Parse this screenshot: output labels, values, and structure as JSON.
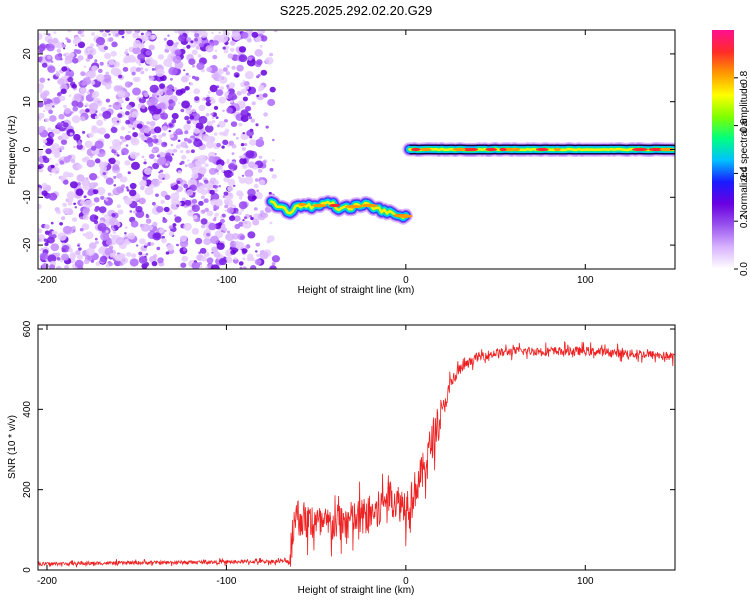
{
  "title": "S225.2025.292.02.20.G29",
  "chart_data": [
    {
      "type": "heatmap",
      "name": "spectrogram",
      "xlabel": "Height of straight line (km)",
      "ylabel": "Frequency (Hz)",
      "xlim": [
        -205,
        150
      ],
      "ylim": [
        -25,
        25
      ],
      "xticks": [
        -200,
        -100,
        0,
        100
      ],
      "yticks": [
        20,
        10,
        0,
        -10,
        -20
      ],
      "colorbar": {
        "label": "Normalized spectral amplitude",
        "range": [
          0,
          1
        ],
        "ticks": [
          0.0,
          0.2,
          0.4,
          0.6,
          0.8
        ],
        "colors": [
          "#ffffff",
          "#d9b3ff",
          "#9955ee",
          "#6a00e0",
          "#1a1aff",
          "#00c0ff",
          "#00ff80",
          "#7fff00",
          "#ffff00",
          "#ff9900",
          "#ff2a2a",
          "#ff1090"
        ]
      },
      "noise_region_x": [
        -205,
        -72
      ],
      "tone_segments": [
        {
          "x": [
            -75,
            -65,
            -58,
            -50,
            -43,
            -36,
            -30,
            -22,
            -15,
            -8,
            0
          ],
          "y": [
            -11,
            -13,
            -11.5,
            -12,
            -11,
            -12.5,
            -12,
            -11.5,
            -12.5,
            -13.5,
            -14
          ]
        },
        {
          "x": [
            2,
            150
          ],
          "y": [
            0,
            0
          ]
        }
      ],
      "grid": false
    },
    {
      "type": "line",
      "name": "snr",
      "xlabel": "Height of straight line (km)",
      "ylabel": "SNR (10 * v/v)",
      "xlim": [
        -205,
        150
      ],
      "ylim": [
        0,
        610
      ],
      "xticks": [
        -200,
        -100,
        0,
        100
      ],
      "yticks": [
        0,
        200,
        400,
        600
      ],
      "color": "#ee2222",
      "envelope": {
        "x": [
          -205,
          -150,
          -100,
          -65,
          -62,
          -55,
          -45,
          -35,
          -25,
          -15,
          -10,
          -5,
          0,
          5,
          10,
          15,
          20,
          25,
          30,
          40,
          50,
          60,
          80,
          100,
          120,
          140,
          150
        ],
        "y": [
          15,
          18,
          20,
          22,
          140,
          120,
          110,
          120,
          130,
          150,
          190,
          170,
          160,
          200,
          250,
          330,
          390,
          460,
          500,
          530,
          540,
          545,
          545,
          545,
          540,
          535,
          530
        ]
      },
      "grid": false
    }
  ]
}
